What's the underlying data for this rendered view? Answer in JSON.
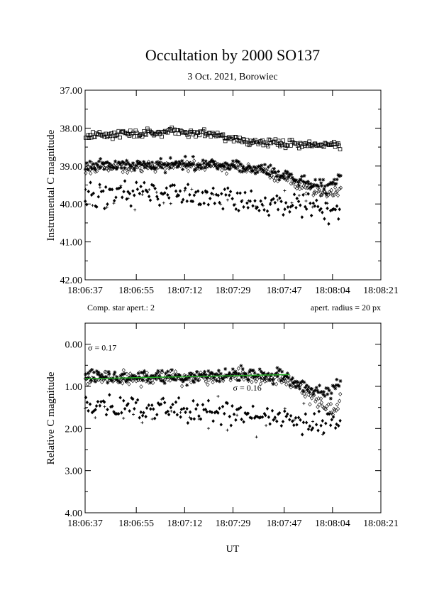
{
  "page": {
    "title": "Occultation by 2000 SO137",
    "subtitle": "3 Oct. 2021, Borowiec",
    "note_left": "Comp. star apert.: 2",
    "note_right": "apert. radius = 20 px",
    "xlabel": "UT"
  },
  "chart_data": [
    {
      "type": "scatter",
      "ylabel": "Instrumental C magnitude",
      "x_ticks": [
        "18:06:37",
        "18:06:55",
        "18:07:12",
        "18:07:29",
        "18:07:47",
        "18:08:04",
        "18:08:21"
      ],
      "x_tick_seconds": [
        0,
        18,
        35,
        52,
        70,
        87,
        104
      ],
      "xlim_seconds": [
        0,
        104
      ],
      "ylim": [
        37.0,
        42.0
      ],
      "y_inverted": true,
      "y_ticks": [
        "37.00",
        "38.00",
        "39.00",
        "40.00",
        "41.00",
        "42.00"
      ],
      "y_tick_values": [
        37,
        38,
        39,
        40,
        41,
        42
      ],
      "x_range_seconds": [
        0,
        90
      ],
      "series": [
        {
          "marker": "square",
          "points_per_second": 2.4,
          "trend": [
            [
              0,
              38.2
            ],
            [
              30,
              38.1
            ],
            [
              45,
              38.15
            ],
            [
              60,
              38.4
            ],
            [
              90,
              38.45
            ]
          ],
          "scatter": 0.1
        },
        {
          "marker": "asterisk",
          "points_per_second": 2.6,
          "trend": [
            [
              0,
              39.0
            ],
            [
              35,
              38.95
            ],
            [
              55,
              39.0
            ],
            [
              65,
              39.15
            ],
            [
              75,
              39.35
            ],
            [
              85,
              39.55
            ],
            [
              90,
              39.3
            ]
          ],
          "scatter": 0.16
        },
        {
          "marker": "diamond-open",
          "points_per_second": 2.6,
          "trend": [
            [
              0,
              39.05
            ],
            [
              35,
              38.95
            ],
            [
              55,
              39.05
            ],
            [
              65,
              39.2
            ],
            [
              75,
              39.5
            ],
            [
              85,
              39.75
            ],
            [
              90,
              39.6
            ]
          ],
          "scatter": 0.14
        },
        {
          "marker": "diamond",
          "points_per_second": 1.8,
          "trend": [
            [
              0,
              39.8
            ],
            [
              20,
              39.65
            ],
            [
              40,
              39.8
            ],
            [
              60,
              39.95
            ],
            [
              80,
              40.1
            ],
            [
              90,
              40.25
            ]
          ],
          "scatter": 0.3
        },
        {
          "marker": "plus",
          "points_per_second": 0.4,
          "trend": [
            [
              0,
              39.8
            ],
            [
              50,
              39.9
            ],
            [
              90,
              40.1
            ]
          ],
          "scatter": 0.35
        }
      ]
    },
    {
      "type": "scatter",
      "ylabel": "Relative C magnitude",
      "x_ticks": [
        "18:06:37",
        "18:06:55",
        "18:07:12",
        "18:07:29",
        "18:07:47",
        "18:08:04",
        "18:08:21"
      ],
      "x_tick_seconds": [
        0,
        18,
        35,
        52,
        70,
        87,
        104
      ],
      "xlim_seconds": [
        0,
        104
      ],
      "ylim": [
        -0.5,
        4.0
      ],
      "y_inverted": true,
      "y_ticks": [
        "0.00",
        "1.00",
        "2.00",
        "3.00",
        "4.00"
      ],
      "y_tick_values": [
        0,
        1,
        2,
        3,
        4
      ],
      "x_range_seconds": [
        0,
        90
      ],
      "annotations": [
        {
          "text": "σ = 0.17",
          "x_seconds": 1,
          "y": 0.15
        },
        {
          "text": "σ = 0.16",
          "x_seconds": 52,
          "y": 1.1
        }
      ],
      "fit_line": {
        "color": "#22aa22",
        "x_seconds": [
          0,
          72
        ],
        "y": [
          0.82,
          0.72
        ]
      },
      "series": [
        {
          "marker": "asterisk",
          "points_per_second": 2.6,
          "trend": [
            [
              0,
              0.75
            ],
            [
              35,
              0.8
            ],
            [
              55,
              0.7
            ],
            [
              70,
              0.75
            ],
            [
              80,
              1.1
            ],
            [
              86,
              1.2
            ],
            [
              90,
              0.9
            ]
          ],
          "scatter": 0.18
        },
        {
          "marker": "diamond-open",
          "points_per_second": 2.6,
          "trend": [
            [
              0,
              0.8
            ],
            [
              35,
              0.8
            ],
            [
              55,
              0.75
            ],
            [
              70,
              0.85
            ],
            [
              80,
              1.3
            ],
            [
              88,
              1.6
            ],
            [
              90,
              1.2
            ]
          ],
          "scatter": 0.14
        },
        {
          "marker": "diamond",
          "points_per_second": 1.8,
          "trend": [
            [
              0,
              1.6
            ],
            [
              20,
              1.5
            ],
            [
              40,
              1.6
            ],
            [
              60,
              1.65
            ],
            [
              80,
              1.8
            ],
            [
              90,
              1.9
            ]
          ],
          "scatter": 0.3
        },
        {
          "marker": "plus",
          "points_per_second": 0.3,
          "trend": [
            [
              0,
              1.5
            ],
            [
              50,
              1.7
            ],
            [
              90,
              1.9
            ]
          ],
          "scatter": 0.5
        }
      ]
    }
  ]
}
